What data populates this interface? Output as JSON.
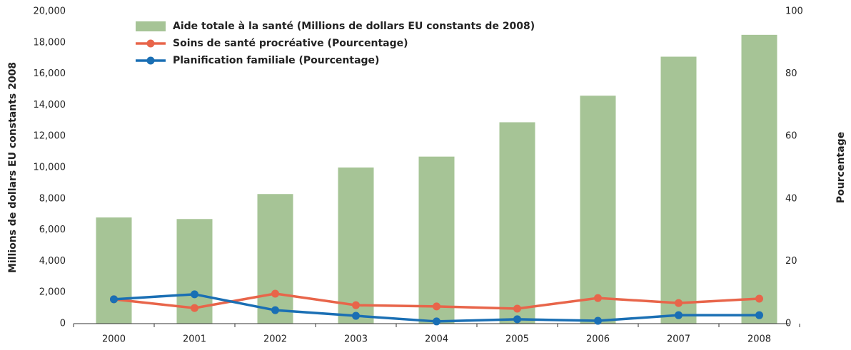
{
  "chart_data": {
    "type": "bar_line",
    "ylabel": "Millions de dollars EU constants 2008",
    "y2label": "Pourcentage",
    "categories": [
      "2000",
      "2001",
      "2002",
      "2003",
      "2004",
      "2005",
      "2006",
      "2007",
      "2008"
    ],
    "series": [
      {
        "name": "Aide totale à la santé (Millions de dollars EU constants de 2008)",
        "type": "bar",
        "color": "#a6c496",
        "values": [
          6800,
          6700,
          8300,
          10000,
          10700,
          12900,
          14600,
          17100,
          18500
        ]
      },
      {
        "name": "Soins de santé procréative (Pourcentage)",
        "type": "line",
        "axis": "y2",
        "color": "#e8654a",
        "values": [
          7.8,
          5.0,
          9.6,
          5.9,
          5.5,
          4.8,
          8.2,
          6.6,
          8.0
        ]
      },
      {
        "name": "Planification familiale (Pourcentage)",
        "type": "line",
        "axis": "y2",
        "color": "#1a6fb4",
        "values": [
          7.8,
          9.4,
          4.3,
          2.5,
          0.7,
          1.4,
          0.9,
          2.7,
          2.7
        ]
      }
    ],
    "ylim": [
      0,
      20000
    ],
    "yticks": [
      0,
      {
        "value": 2000,
        "label": "2,000"
      },
      {
        "value": 4000,
        "label": "4,000"
      },
      {
        "value": 6000,
        "label": "6,000"
      },
      {
        "value": 8000,
        "label": "8,000"
      },
      {
        "value": 10000,
        "label": "10,000"
      },
      {
        "value": 12000,
        "label": "12,000"
      },
      {
        "value": 14000,
        "label": "14,000"
      },
      {
        "value": 16000,
        "label": "16,000"
      },
      {
        "value": 18000,
        "label": "18,000"
      },
      {
        "value": 20000,
        "label": "20,000"
      }
    ],
    "y2lim": [
      0,
      100
    ],
    "y2ticks": [
      0,
      20,
      40,
      60,
      80,
      100
    ],
    "legend": "upper left"
  }
}
